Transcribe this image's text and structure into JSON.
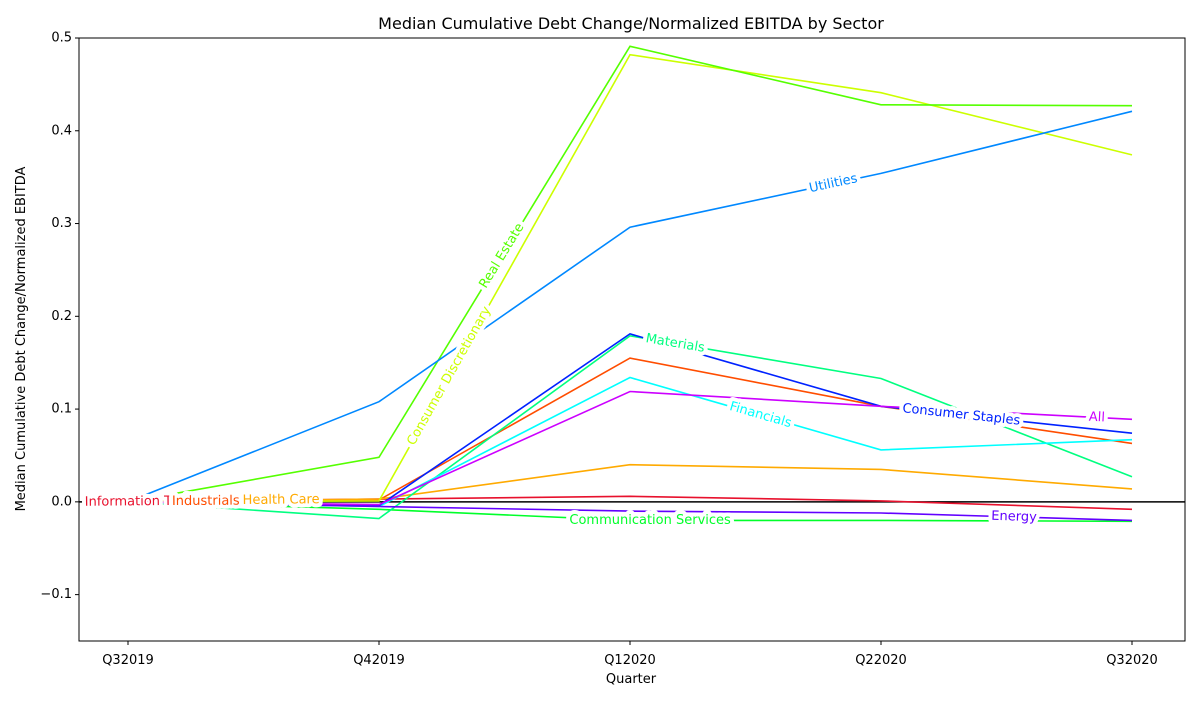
{
  "chart_data": {
    "type": "line",
    "title": "Median Cumulative Debt Change/Normalized EBITDA by Sector",
    "xlabel": "Quarter",
    "ylabel": "Median Cumulative Debt Change/Normalized EBITDA",
    "categories": [
      "Q32019",
      "Q42019",
      "Q12020",
      "Q22020",
      "Q32020"
    ],
    "ylim": [
      -0.15,
      0.5
    ],
    "yticks": [
      -0.1,
      0.0,
      0.1,
      0.2,
      0.3,
      0.4,
      0.5
    ],
    "ytick_labels": [
      "−0.1",
      "0.0",
      "0.1",
      "0.2",
      "0.3",
      "0.4",
      "0.5"
    ],
    "grid": false,
    "legend": "inline labels on lines",
    "reference_line": {
      "y": 0,
      "color": "#000000"
    },
    "series": [
      {
        "name": "Information Techn",
        "color": "#e8112d",
        "values": [
          0.0,
          0.003,
          0.006,
          0.001,
          -0.008
        ],
        "label_at": 0.06
      },
      {
        "name": "Industrials",
        "color": "#ff4d00",
        "values": [
          0.0,
          0.002,
          0.155,
          0.103,
          0.063
        ],
        "label_at": 0.31
      },
      {
        "name": "Health Care",
        "color": "#ffaa00",
        "values": [
          0.0,
          0.003,
          0.04,
          0.035,
          0.014
        ],
        "label_at": 0.61
      },
      {
        "name": "Consumer Discretionary",
        "color": "#ccff00",
        "values": [
          0.0,
          0.001,
          0.482,
          0.441,
          0.374
        ],
        "label_at": 1.28
      },
      {
        "name": "Real Estate",
        "color": "#55ff00",
        "values": [
          0.0,
          0.048,
          0.491,
          0.428,
          0.427
        ],
        "label_at": 1.49
      },
      {
        "name": "Communication Services",
        "color": "#00ff2a",
        "values": [
          0.0,
          -0.008,
          -0.02,
          -0.02,
          -0.021
        ],
        "label_at": 2.08
      },
      {
        "name": "Materials",
        "color": "#00ff80",
        "values": [
          0.0,
          -0.018,
          0.179,
          0.133,
          0.027
        ],
        "label_at": 2.18
      },
      {
        "name": "Financials",
        "color": "#00ffff",
        "values": [
          0.0,
          -0.005,
          0.134,
          0.056,
          0.067
        ],
        "label_at": 2.52
      },
      {
        "name": "Utilities",
        "color": "#0088ff",
        "values": [
          0.0,
          0.108,
          0.296,
          0.354,
          0.421
        ],
        "label_at": 2.81
      },
      {
        "name": "Consumer Staples",
        "color": "#0022ff",
        "values": [
          0.0,
          -0.004,
          0.181,
          0.103,
          0.074
        ],
        "label_at": 3.32
      },
      {
        "name": "Energy",
        "color": "#6200ff",
        "values": [
          0.0,
          -0.005,
          -0.01,
          -0.012,
          -0.02
        ],
        "label_at": 3.53
      },
      {
        "name": "All",
        "color": "#cc00ff",
        "values": [
          0.0,
          -0.003,
          0.119,
          0.103,
          0.089
        ],
        "label_at": 3.86
      }
    ]
  }
}
